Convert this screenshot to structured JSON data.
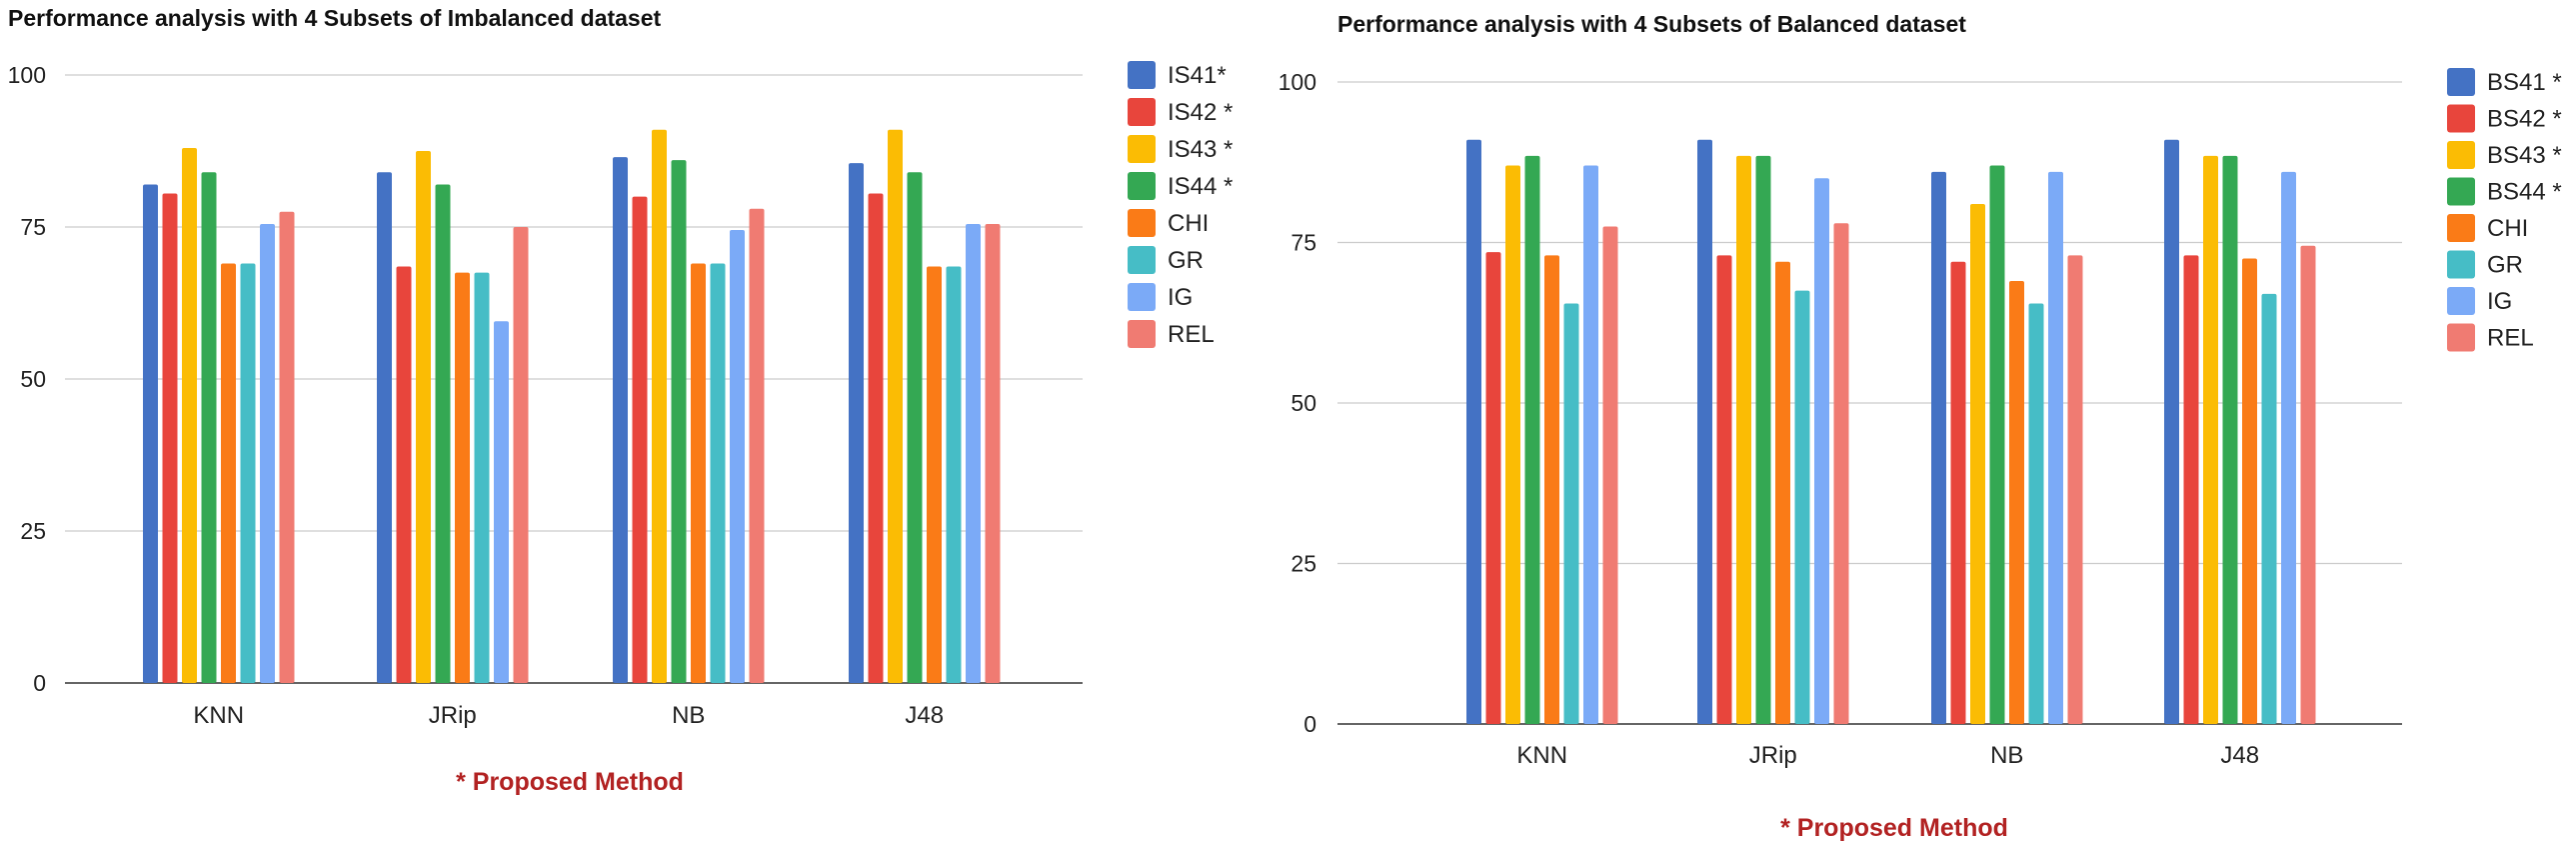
{
  "colors": {
    "series": [
      "#4472c4",
      "#e8453c",
      "#fbbc04",
      "#34a853",
      "#fa7b17",
      "#46bdc6",
      "#7baaf7",
      "#f07b72"
    ],
    "grid": "#cccccc",
    "note": "#b22222"
  },
  "chart_data": [
    {
      "type": "bar",
      "title": "Performance analysis with 4 Subsets  of Imbalanced dataset",
      "note": "* Proposed Method",
      "categories": [
        "KNN",
        "JRip",
        "NB",
        "J48"
      ],
      "ylim": [
        0,
        100
      ],
      "yticks": [
        0,
        25,
        50,
        75,
        100
      ],
      "grid": true,
      "legend_position": "right",
      "series": [
        {
          "name": "IS41*",
          "values": [
            82,
            84,
            86.5,
            85.5
          ]
        },
        {
          "name": "IS42 *",
          "values": [
            80.5,
            68.5,
            80,
            80.5
          ]
        },
        {
          "name": "IS43 *",
          "values": [
            88,
            87.5,
            91,
            91
          ]
        },
        {
          "name": "IS44 *",
          "values": [
            84,
            82,
            86,
            84
          ]
        },
        {
          "name": "CHI",
          "values": [
            69,
            67.5,
            69,
            68.5
          ]
        },
        {
          "name": "GR",
          "values": [
            69,
            67.5,
            69,
            68.5
          ]
        },
        {
          "name": "IG",
          "values": [
            75.5,
            59.5,
            74.5,
            75.5
          ]
        },
        {
          "name": "REL",
          "values": [
            77.5,
            75,
            78,
            75.5
          ]
        }
      ]
    },
    {
      "type": "bar",
      "title": "Performance analysis with 4 Subsets  of Balanced dataset",
      "note": "* Proposed Method",
      "categories": [
        "KNN",
        "JRip",
        "NB",
        "J48"
      ],
      "ylim": [
        0,
        100
      ],
      "yticks": [
        0,
        25,
        50,
        75,
        100
      ],
      "grid": true,
      "legend_position": "right",
      "series": [
        {
          "name": "BS41 *",
          "values": [
            91,
            91,
            86,
            91
          ]
        },
        {
          "name": "BS42 *",
          "values": [
            73.5,
            73,
            72,
            73
          ]
        },
        {
          "name": "BS43 *",
          "values": [
            87,
            88.5,
            81,
            88.5
          ]
        },
        {
          "name": "BS44 *",
          "values": [
            88.5,
            88.5,
            87,
            88.5
          ]
        },
        {
          "name": "CHI",
          "values": [
            73,
            72,
            69,
            72.5
          ]
        },
        {
          "name": "GR",
          "values": [
            65.5,
            67.5,
            65.5,
            67
          ]
        },
        {
          "name": "IG",
          "values": [
            87,
            85,
            86,
            86
          ]
        },
        {
          "name": "REL",
          "values": [
            77.5,
            78,
            73,
            74.5
          ]
        }
      ]
    }
  ]
}
